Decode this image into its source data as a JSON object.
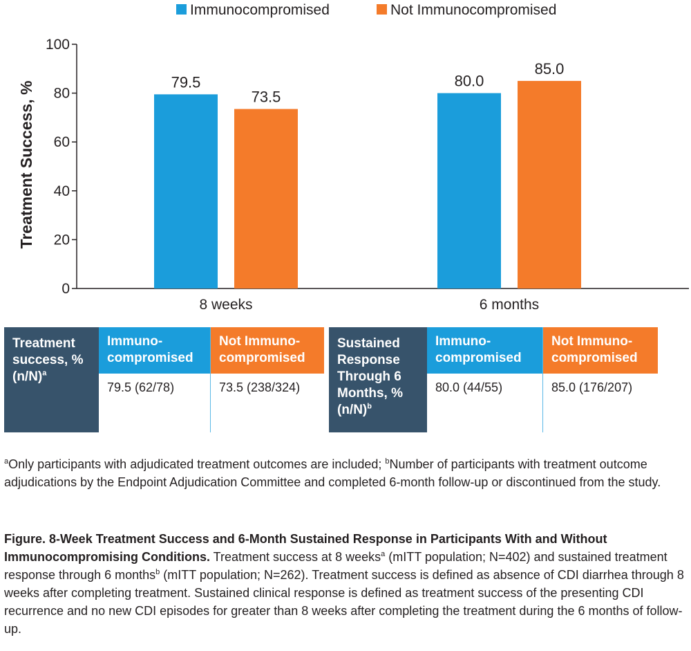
{
  "chart_data": {
    "type": "bar",
    "title": "",
    "xlabel": "",
    "ylabel": "Treatment Success, %",
    "ylim": [
      0,
      100
    ],
    "yticks": [
      0,
      20,
      40,
      60,
      80,
      100
    ],
    "categories": [
      "8 weeks",
      "6 months"
    ],
    "series": [
      {
        "name": "Immunocompromised",
        "color": "#1b9ddb",
        "values": [
          79.5,
          80.0
        ],
        "labels": [
          "79.5",
          "80.0"
        ]
      },
      {
        "name": "Not Immunocompromised",
        "color": "#f47b2a",
        "values": [
          73.5,
          85.0
        ],
        "labels": [
          "73.5",
          "85.0"
        ]
      }
    ],
    "legend": "top-center",
    "grid": false
  },
  "table": {
    "left": {
      "row_label": "Treatment success, % (n/N)",
      "row_label_sup": "a",
      "col1_header": "Immuno-compromised",
      "col1_value": "79.5 (62/78)",
      "col2_header": "Not Immuno-compromised",
      "col2_value": "73.5 (238/324)"
    },
    "right": {
      "row_label": "Sustained Response Through 6 Months, % (n/N)",
      "row_label_sup": "b",
      "col1_header": "Immuno-compromised",
      "col1_value": "80.0 (44/55)",
      "col2_header": "Not Immuno-compromised",
      "col2_value": "85.0 (176/207)"
    }
  },
  "footnotes": {
    "a_mark": "a",
    "a_text": "Only participants with adjudicated treatment outcomes are included; ",
    "b_mark": "b",
    "b_text": "Number of participants with treatment outcome adjudications by the Endpoint Adjudication Committee and completed 6-month follow-up or discontinued from the study."
  },
  "caption": {
    "title": "Figure. 8-Week Treatment Success and 6-Month Sustained Response in Participants With and Without Immunocompromising Conditions.",
    "text1": " Treatment success at 8 weeks",
    "sup1": "a",
    "text2": " (mITT population; N=402) and sustained treatment response through 6 months",
    "sup2": "b",
    "text3": " (mITT population; N=262). Treatment success is defined as absence of CDI diarrhea through 8 weeks after completing treatment. Sustained clinical response is defined as treatment success of the presenting CDI recurrence and no new CDI episodes for greater than 8 weeks after completing the treatment during the 6 months of follow-up."
  }
}
